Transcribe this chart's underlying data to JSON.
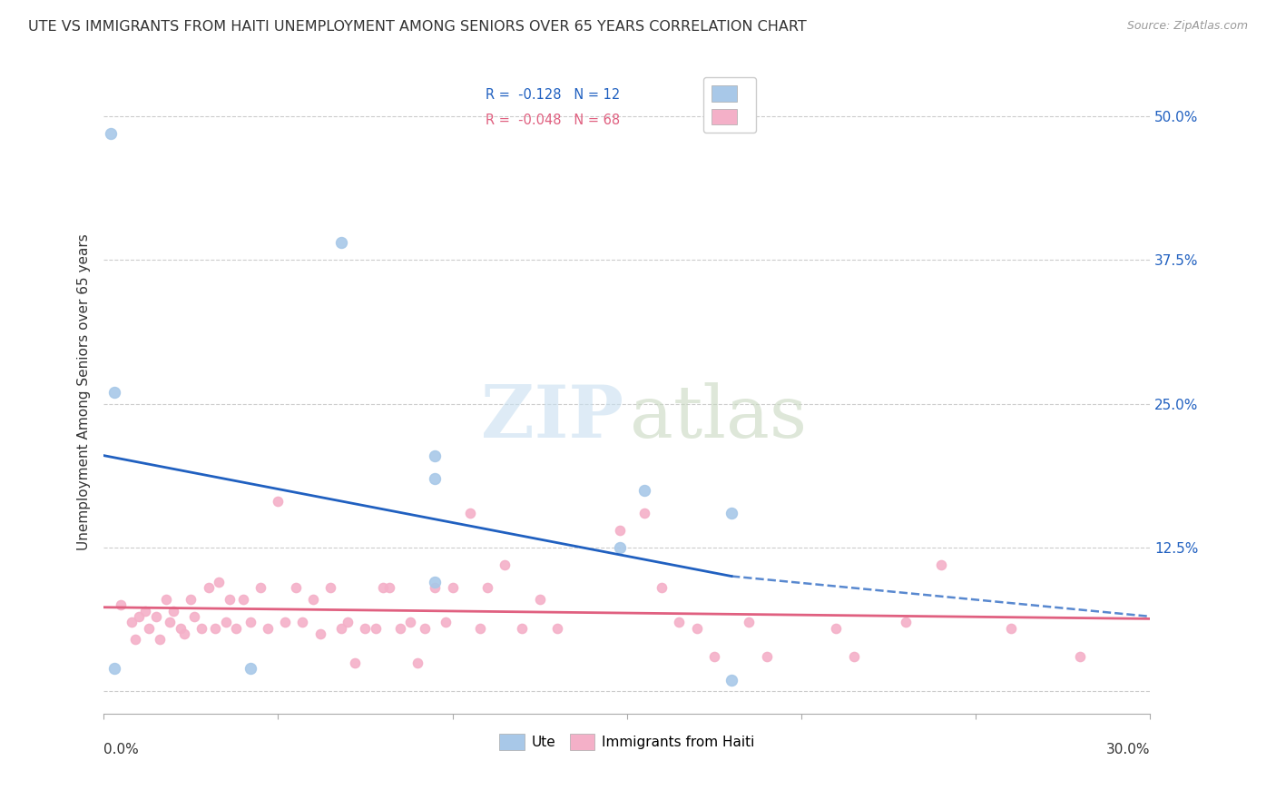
{
  "title": "UTE VS IMMIGRANTS FROM HAITI UNEMPLOYMENT AMONG SENIORS OVER 65 YEARS CORRELATION CHART",
  "source": "Source: ZipAtlas.com",
  "ylabel": "Unemployment Among Seniors over 65 years",
  "yticks": [
    0.0,
    0.125,
    0.25,
    0.375,
    0.5
  ],
  "ytick_labels": [
    "",
    "12.5%",
    "25.0%",
    "37.5%",
    "50.0%"
  ],
  "xlim": [
    0.0,
    0.3
  ],
  "ylim": [
    -0.02,
    0.54
  ],
  "ute_points": [
    [
      0.002,
      0.485
    ],
    [
      0.068,
      0.39
    ],
    [
      0.003,
      0.26
    ],
    [
      0.095,
      0.205
    ],
    [
      0.003,
      0.02
    ],
    [
      0.042,
      0.02
    ],
    [
      0.095,
      0.185
    ],
    [
      0.095,
      0.095
    ],
    [
      0.148,
      0.125
    ],
    [
      0.155,
      0.175
    ],
    [
      0.18,
      0.155
    ],
    [
      0.18,
      0.01
    ]
  ],
  "haiti_points": [
    [
      0.005,
      0.075
    ],
    [
      0.008,
      0.06
    ],
    [
      0.009,
      0.045
    ],
    [
      0.01,
      0.065
    ],
    [
      0.012,
      0.07
    ],
    [
      0.013,
      0.055
    ],
    [
      0.015,
      0.065
    ],
    [
      0.016,
      0.045
    ],
    [
      0.018,
      0.08
    ],
    [
      0.019,
      0.06
    ],
    [
      0.02,
      0.07
    ],
    [
      0.022,
      0.055
    ],
    [
      0.023,
      0.05
    ],
    [
      0.025,
      0.08
    ],
    [
      0.026,
      0.065
    ],
    [
      0.028,
      0.055
    ],
    [
      0.03,
      0.09
    ],
    [
      0.032,
      0.055
    ],
    [
      0.033,
      0.095
    ],
    [
      0.035,
      0.06
    ],
    [
      0.036,
      0.08
    ],
    [
      0.038,
      0.055
    ],
    [
      0.04,
      0.08
    ],
    [
      0.042,
      0.06
    ],
    [
      0.045,
      0.09
    ],
    [
      0.047,
      0.055
    ],
    [
      0.05,
      0.165
    ],
    [
      0.052,
      0.06
    ],
    [
      0.055,
      0.09
    ],
    [
      0.057,
      0.06
    ],
    [
      0.06,
      0.08
    ],
    [
      0.062,
      0.05
    ],
    [
      0.065,
      0.09
    ],
    [
      0.068,
      0.055
    ],
    [
      0.07,
      0.06
    ],
    [
      0.072,
      0.025
    ],
    [
      0.075,
      0.055
    ],
    [
      0.078,
      0.055
    ],
    [
      0.08,
      0.09
    ],
    [
      0.082,
      0.09
    ],
    [
      0.085,
      0.055
    ],
    [
      0.088,
      0.06
    ],
    [
      0.09,
      0.025
    ],
    [
      0.092,
      0.055
    ],
    [
      0.095,
      0.09
    ],
    [
      0.098,
      0.06
    ],
    [
      0.1,
      0.09
    ],
    [
      0.105,
      0.155
    ],
    [
      0.108,
      0.055
    ],
    [
      0.11,
      0.09
    ],
    [
      0.115,
      0.11
    ],
    [
      0.12,
      0.055
    ],
    [
      0.125,
      0.08
    ],
    [
      0.13,
      0.055
    ],
    [
      0.148,
      0.14
    ],
    [
      0.155,
      0.155
    ],
    [
      0.16,
      0.09
    ],
    [
      0.165,
      0.06
    ],
    [
      0.17,
      0.055
    ],
    [
      0.175,
      0.03
    ],
    [
      0.185,
      0.06
    ],
    [
      0.19,
      0.03
    ],
    [
      0.21,
      0.055
    ],
    [
      0.215,
      0.03
    ],
    [
      0.23,
      0.06
    ],
    [
      0.24,
      0.11
    ],
    [
      0.26,
      0.055
    ],
    [
      0.28,
      0.03
    ]
  ],
  "ute_color": "#a8c8e8",
  "haiti_color": "#f4b0c8",
  "ute_line_color": "#2060c0",
  "haiti_line_color": "#e06080",
  "ute_line_solid": [
    [
      0.0,
      0.205
    ],
    [
      0.18,
      0.1
    ]
  ],
  "ute_line_dash": [
    [
      0.18,
      0.1
    ],
    [
      0.3,
      0.065
    ]
  ],
  "haiti_line_solid": [
    [
      0.0,
      0.073
    ],
    [
      0.3,
      0.063
    ]
  ],
  "bg_color": "#ffffff",
  "grid_color": "#cccccc",
  "legend_ute_text": "R =  -0.128   N = 12",
  "legend_haiti_text": "R =  -0.048   N = 68",
  "legend_ute_color": "#2060c0",
  "legend_haiti_color": "#e06080",
  "bottom_legend_labels": [
    "Ute",
    "Immigrants from Haiti"
  ],
  "watermark_zip": "ZIP",
  "watermark_atlas": "atlas"
}
